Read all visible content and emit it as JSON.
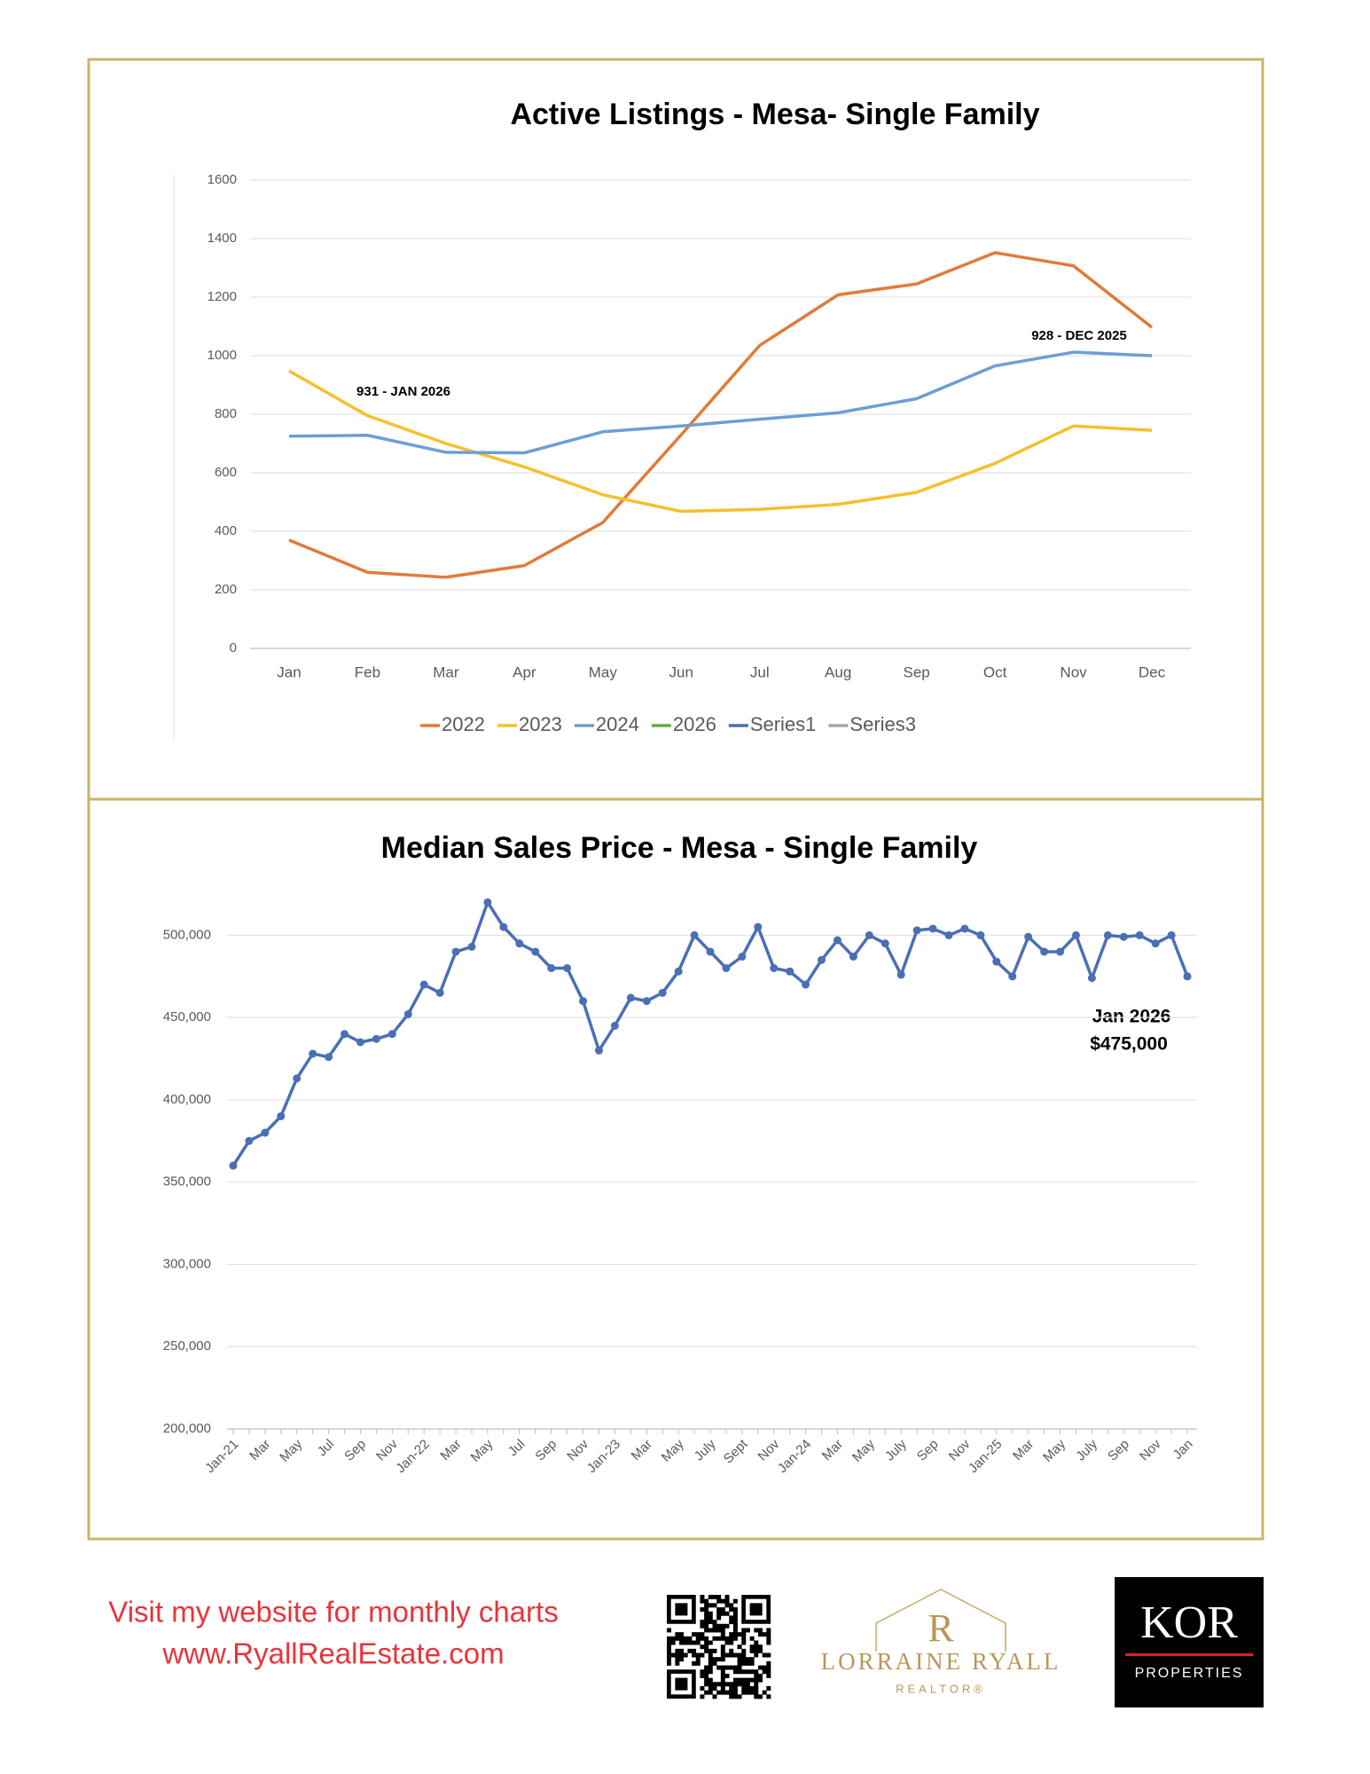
{
  "chart_data": [
    {
      "type": "line",
      "title": "Active Listings - Mesa-  Single Family",
      "categories": [
        "Jan",
        "Feb",
        "Mar",
        "Apr",
        "May",
        "Jun",
        "Jul",
        "Aug",
        "Sep",
        "Oct",
        "Nov",
        "Dec"
      ],
      "series": [
        {
          "name": "2022",
          "color": "#e07b39",
          "values": [
            370,
            260,
            243,
            283,
            430,
            730,
            1035,
            1208,
            1245,
            1352,
            1307,
            1097
          ]
        },
        {
          "name": "2023",
          "color": "#f5c02c",
          "values": [
            948,
            795,
            700,
            620,
            525,
            468,
            475,
            492,
            533,
            632,
            760,
            745
          ]
        },
        {
          "name": "2024",
          "color": "#6b9fd4",
          "values": [
            725,
            728,
            670,
            668,
            740,
            760,
            783,
            805,
            853,
            965,
            1012,
            1000
          ]
        },
        {
          "name": "2026",
          "color": "#6aaa3a",
          "values": [
            null,
            null,
            null,
            null,
            null,
            null,
            null,
            null,
            null,
            null,
            null,
            null
          ]
        },
        {
          "name": "Series1",
          "color": "#4a6fb5",
          "values": [
            null,
            null,
            null,
            null,
            null,
            null,
            null,
            null,
            null,
            null,
            null,
            null
          ]
        },
        {
          "name": "Series3",
          "color": "#a5a5a5",
          "values": [
            null,
            null,
            null,
            null,
            null,
            null,
            null,
            null,
            null,
            null,
            null,
            null
          ]
        }
      ],
      "ylim": [
        0,
        1600
      ],
      "yticks": [
        0,
        200,
        400,
        600,
        800,
        1000,
        1200,
        1400,
        1600
      ],
      "grid": true,
      "legend": "bottom",
      "annotations": [
        "931 - JAN 2026",
        "928 - DEC 2025"
      ]
    },
    {
      "type": "line",
      "title": "Median Sales Price -  Mesa - Single Family",
      "categories": [
        "Jan-21",
        null,
        "Mar",
        null,
        "May",
        null,
        "Jul",
        null,
        "Sep",
        null,
        "Nov",
        null,
        "Jan-22",
        null,
        "Mar",
        null,
        "May",
        null,
        "Jul",
        null,
        "Sep",
        null,
        "Nov",
        null,
        "Jan-23",
        null,
        "Mar",
        null,
        "May",
        null,
        "July",
        null,
        "Sept",
        null,
        "Nov",
        null,
        "Jan-24",
        null,
        "Mar",
        null,
        "May",
        null,
        "July",
        null,
        "Sep",
        null,
        "Nov",
        null,
        "Jan-25",
        null,
        "Mar",
        null,
        "May",
        null,
        "July",
        null,
        "Sep",
        null,
        "Nov",
        null,
        "Jan"
      ],
      "color": "#4a6fb5",
      "markers": true,
      "values": [
        360000,
        375000,
        380000,
        390000,
        413000,
        428000,
        426000,
        440000,
        435000,
        437000,
        440000,
        452000,
        470000,
        465000,
        490000,
        493000,
        520000,
        505000,
        495000,
        490000,
        480000,
        480000,
        460000,
        430000,
        445000,
        462000,
        460000,
        465000,
        478000,
        500000,
        490000,
        480000,
        487000,
        505000,
        480000,
        478000,
        470000,
        485000,
        497000,
        487000,
        500000,
        495000,
        476000,
        503000,
        504000,
        500000,
        504000,
        500000,
        484000,
        475000,
        499000,
        490000,
        490000,
        500000,
        474000,
        500000,
        499000,
        500000,
        495000,
        500000,
        475000
      ],
      "ylim": [
        200000,
        525000
      ],
      "yticks": [
        {
          "value": 200000,
          "label": "200,000"
        },
        {
          "value": 250000,
          "label": "250,000"
        },
        {
          "value": 300000,
          "label": "300,000"
        },
        {
          "value": 350000,
          "label": "350,000"
        },
        {
          "value": 400000,
          "label": "400,000"
        },
        {
          "value": 450000,
          "label": "450,000"
        },
        {
          "value": 500000,
          "label": "500,000"
        }
      ],
      "grid": true,
      "annotations": [
        "Jan 2026",
        "$475,000"
      ]
    }
  ],
  "footer": {
    "line1": "Visit my website for monthly charts",
    "line2": "www.RyallRealEstate.com",
    "logo_letter": "R",
    "logo_name": "LORRAINE RYALL",
    "logo_sub": "REALTOR®",
    "brand": "KOR",
    "brand_sub": "PROPERTIES"
  }
}
